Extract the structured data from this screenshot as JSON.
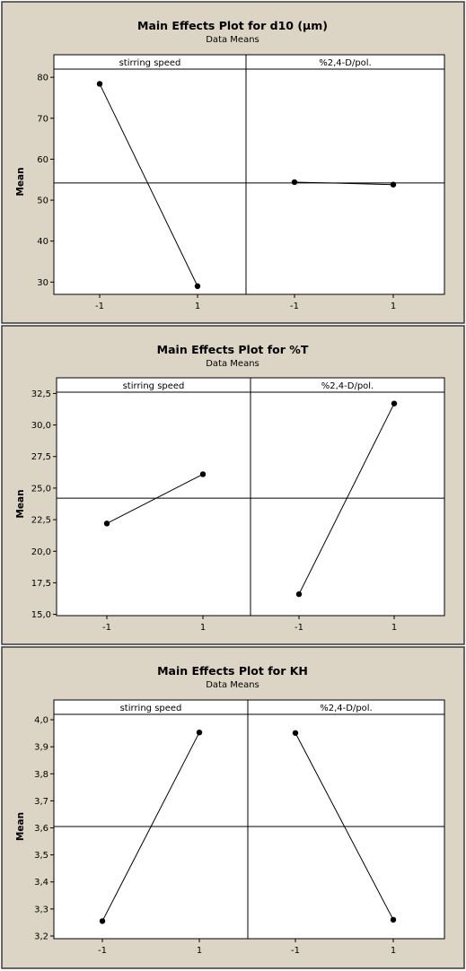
{
  "chart_data": [
    {
      "type": "line",
      "title": "Main Effects Plot for d10 (µm)",
      "subtitle": "Data Means",
      "ylabel": "Mean",
      "ylim": [
        27,
        82
      ],
      "yticks": [
        "80",
        "70",
        "60",
        "50",
        "40",
        "30"
      ],
      "ytick_values": [
        80,
        70,
        60,
        50,
        40,
        30
      ],
      "reference_mean": 54.2,
      "factors": [
        {
          "name": "stirring speed",
          "levels": [
            "-1",
            "1"
          ],
          "values": [
            78.4,
            29.0
          ]
        },
        {
          "name": "%2,4-D/pol.",
          "levels": [
            "-1",
            "1"
          ],
          "values": [
            54.4,
            53.8
          ]
        }
      ]
    },
    {
      "type": "line",
      "title": "Main Effects Plot for %T",
      "subtitle": "Data Means",
      "ylabel": "Mean",
      "ylim": [
        14.9,
        32.6
      ],
      "yticks": [
        "32,5",
        "30,0",
        "27,5",
        "25,0",
        "22,5",
        "20,0",
        "17,5",
        "15,0"
      ],
      "ytick_values": [
        32.5,
        30.0,
        27.5,
        25.0,
        22.5,
        20.0,
        17.5,
        15.0
      ],
      "reference_mean": 24.2,
      "factors": [
        {
          "name": "stirring speed",
          "levels": [
            "-1",
            "1"
          ],
          "values": [
            22.2,
            26.1
          ]
        },
        {
          "name": "%2,4-D/pol.",
          "levels": [
            "-1",
            "1"
          ],
          "values": [
            16.6,
            31.7
          ]
        }
      ]
    },
    {
      "type": "line",
      "title": "Main Effects Plot for KH",
      "subtitle": "Data Means",
      "ylabel": "Mean",
      "ylim": [
        3.19,
        4.02
      ],
      "yticks": [
        "4,0",
        "3,9",
        "3,8",
        "3,7",
        "3,6",
        "3,5",
        "3,4",
        "3,3",
        "3,2"
      ],
      "ytick_values": [
        4.0,
        3.9,
        3.8,
        3.7,
        3.6,
        3.5,
        3.4,
        3.3,
        3.2
      ],
      "reference_mean": 3.605,
      "factors": [
        {
          "name": "stirring speed",
          "levels": [
            "-1",
            "1"
          ],
          "values": [
            3.255,
            3.953
          ]
        },
        {
          "name": "%2,4-D/pol.",
          "levels": [
            "-1",
            "1"
          ],
          "values": [
            3.951,
            3.26
          ]
        }
      ]
    }
  ]
}
